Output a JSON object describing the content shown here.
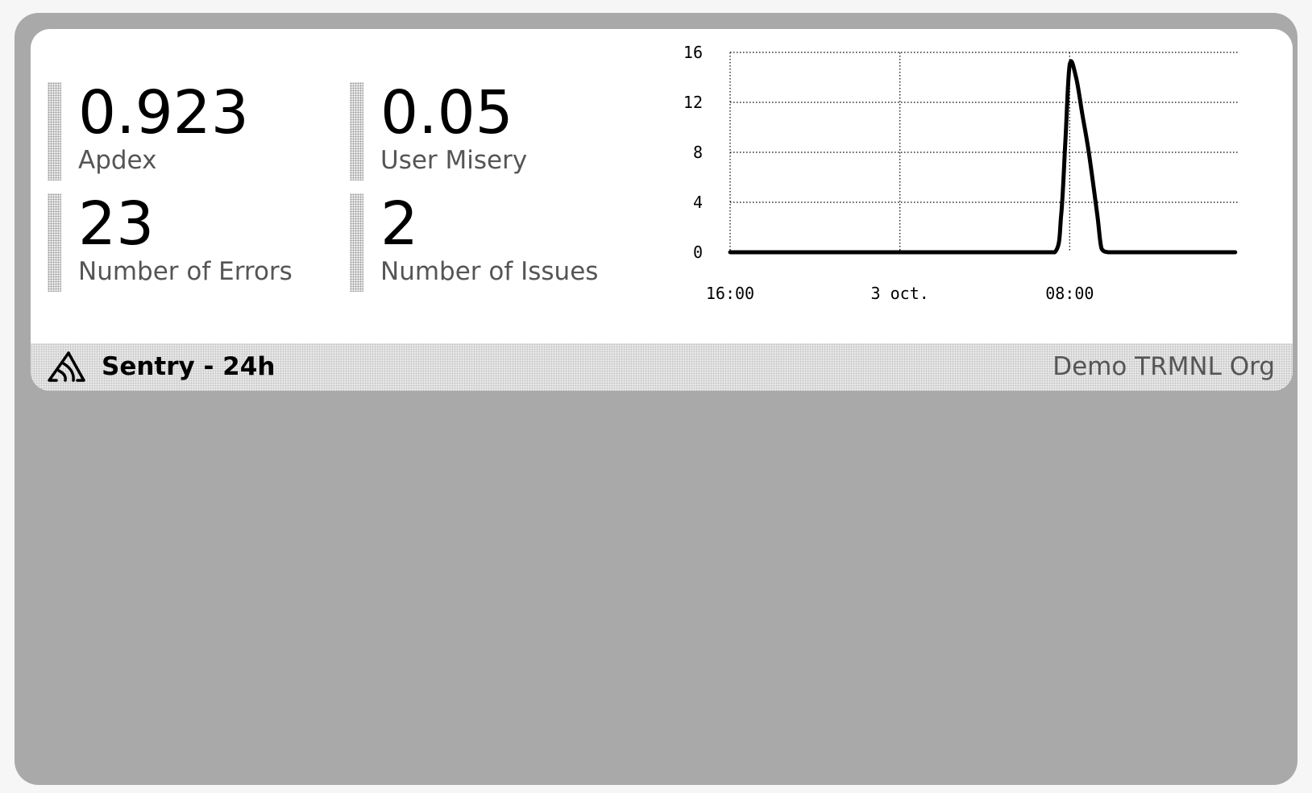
{
  "metrics": [
    {
      "value": "0.923",
      "label": "Apdex"
    },
    {
      "value": "0.05",
      "label": "User Misery"
    },
    {
      "value": "23",
      "label": "Number of Errors"
    },
    {
      "value": "2",
      "label": "Number of Issues"
    }
  ],
  "footer": {
    "logo_icon": "sentry-logo-icon",
    "title": "Sentry - 24h",
    "org": "Demo TRMNL Org"
  },
  "chart_data": {
    "type": "line",
    "title": "",
    "xlabel": "",
    "ylabel": "",
    "x_tick_labels": [
      "16:00",
      "3 oct.",
      "08:00"
    ],
    "y_ticks": [
      0,
      4,
      8,
      12,
      16
    ],
    "ylim": [
      0,
      16
    ],
    "grid": true,
    "legend": "none",
    "series": [
      {
        "x": [
          0,
          0.25,
          0.5,
          0.75,
          1,
          2,
          4,
          6,
          8,
          10,
          12,
          14,
          15.3,
          15.6,
          15.8,
          16.0,
          16.3,
          16.6,
          16.9,
          17.3,
          17.5,
          17.8,
          18,
          20,
          22,
          23,
          23.8
        ],
        "y": [
          0,
          0,
          0,
          0,
          0,
          0,
          0,
          0,
          0,
          0,
          0,
          0,
          0,
          3,
          9,
          15,
          14,
          11,
          8,
          3,
          0.3,
          0,
          0,
          0,
          0,
          0,
          0
        ]
      }
    ],
    "color": "#000000"
  }
}
